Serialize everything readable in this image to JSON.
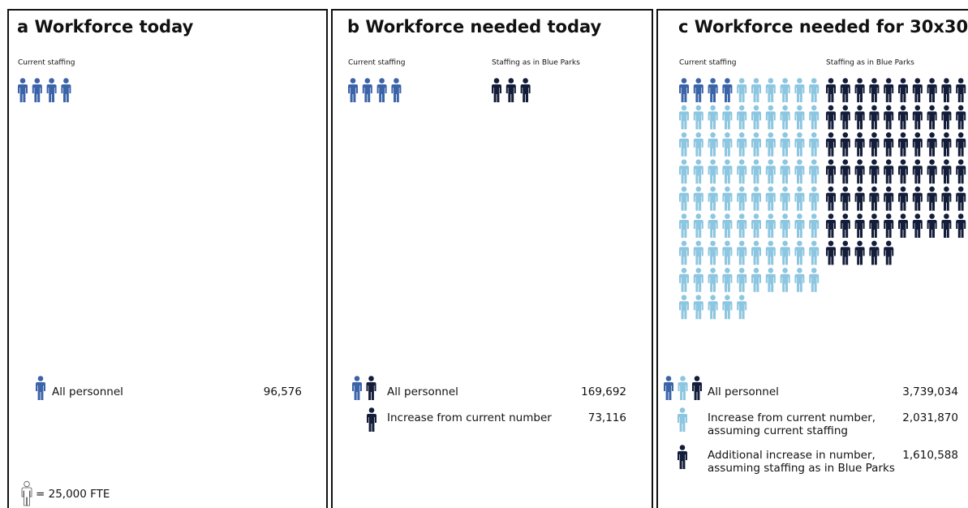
{
  "chart_data": [
    {
      "type": "pictogram",
      "title": "a Workforce today",
      "columns": [
        "Current staffing"
      ],
      "unit": {
        "value": 25000,
        "label": "= 25,000 FTE"
      },
      "series": [
        {
          "name": "All personnel",
          "color": "#3b63a8",
          "values": [
            96576
          ],
          "value_labels": [
            "96,576"
          ]
        }
      ]
    },
    {
      "type": "pictogram",
      "title": "b Workforce needed today",
      "columns": [
        "Current staffing",
        "Staffing as in Blue Parks"
      ],
      "series": [
        {
          "name": "All personnel",
          "values": [
            169692
          ],
          "value_labels": [
            "169,692"
          ]
        },
        {
          "name": "Increase from current number",
          "color": "#131c38",
          "values": [
            73116
          ],
          "value_labels": [
            "73,116"
          ]
        }
      ]
    },
    {
      "type": "pictogram",
      "title": "c Workforce needed for 30x30",
      "columns": [
        "Current staffing",
        "Staffing as in Blue Parks"
      ],
      "series": [
        {
          "name": "All personnel",
          "values": [
            3739034
          ],
          "value_labels": [
            "3,739,034"
          ]
        },
        {
          "name": [
            "Increase from current number,",
            "assuming current staffing"
          ],
          "color": "#8cc6e0",
          "values": [
            2031870
          ],
          "value_labels": [
            "2,031,870"
          ]
        },
        {
          "name": [
            "Additional increase in number,",
            "assuming staffing as in Blue Parks"
          ],
          "color": "#131c38",
          "values": [
            1610588
          ],
          "value_labels": [
            "1,610,588"
          ]
        }
      ]
    }
  ]
}
